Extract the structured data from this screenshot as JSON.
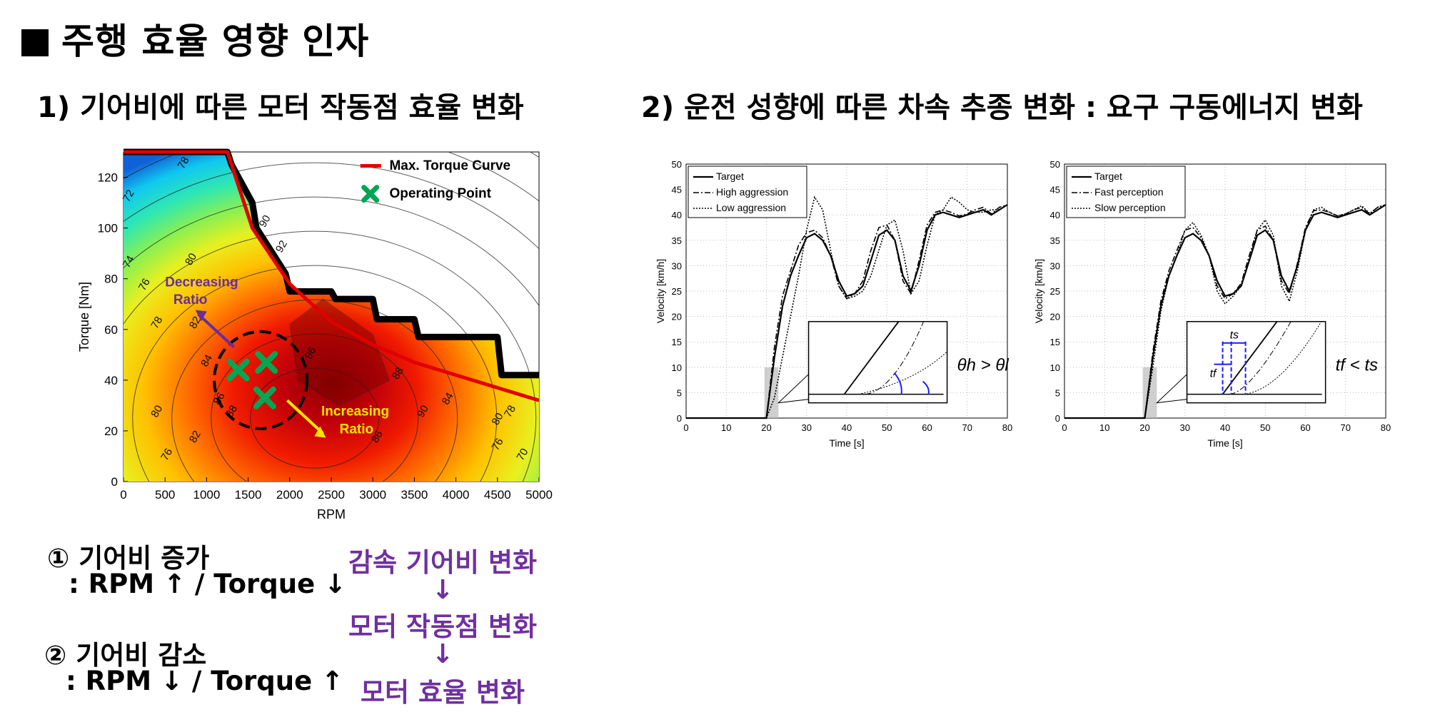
{
  "title": "주행 효율 영향 인자",
  "section1": {
    "title": "1) 기어비에 따른 모터 작동점 효율 변화"
  },
  "section2": {
    "title": "2) 운전 성향에 따른 차속 추종 변화 : 요구 구동에너지 변화"
  },
  "notes": {
    "increase_title": "① 기어비 증가",
    "increase_desc": ": RPM ↑ / Torque ↓",
    "decrease_title": "② 기어비 감소",
    "decrease_desc": ": RPM ↓ / Torque ↑"
  },
  "flow": {
    "step1": "감속 기어비 변화",
    "arrow1": "↓",
    "step2": "모터 작동점 변화",
    "arrow2": "↓",
    "step3": "모터 효율 변화"
  },
  "colors": {
    "purple": "#7030A0",
    "max_torque": "#E00000",
    "operating_point": "#00A651",
    "yellow_arrow": "#FFE600"
  },
  "chart_data": [
    {
      "type": "heatmap",
      "xlabel": "RPM",
      "ylabel": "Torque [Nm]",
      "xlim": [
        0,
        5000
      ],
      "ylim": [
        0,
        130
      ],
      "xticks": [
        "0",
        "500",
        "1000",
        "1500",
        "2000",
        "2500",
        "3000",
        "3500",
        "4000",
        "4500",
        "5000"
      ],
      "yticks": [
        "0",
        "20",
        "40",
        "60",
        "80",
        "100",
        "120"
      ],
      "legend": {
        "position": "top-right",
        "entries": [
          "Max. Torque Curve",
          "Operating Point"
        ]
      },
      "max_torque_curve": {
        "x": [
          0,
          1250,
          1550,
          2000,
          2500,
          3000,
          3500,
          4000,
          4500,
          5000
        ],
        "y": [
          130,
          130,
          100,
          78,
          63,
          54,
          47,
          42,
          37,
          32
        ]
      },
      "operating_points": [
        {
          "x": 1380,
          "y": 44
        },
        {
          "x": 1720,
          "y": 47
        },
        {
          "x": 1700,
          "y": 33
        }
      ],
      "efficiency_labels": [
        "72",
        "78",
        "74",
        "76",
        "78",
        "80",
        "82",
        "84",
        "86",
        "88",
        "90",
        "92",
        "96",
        "80",
        "76",
        "82",
        "86",
        "88",
        "90",
        "84",
        "80",
        "78",
        "76",
        "70"
      ],
      "annotations": {
        "decreasing": "Decreasing\nRatio",
        "increasing": "Increasing\nRatio"
      }
    },
    {
      "type": "line",
      "xlabel": "Time [s]",
      "ylabel": "Velocity [km/h]",
      "xlim": [
        0,
        80
      ],
      "ylim": [
        0,
        50
      ],
      "xticks": [
        "0",
        "10",
        "20",
        "30",
        "40",
        "50",
        "60",
        "70",
        "80"
      ],
      "yticks": [
        "0",
        "5",
        "10",
        "15",
        "20",
        "25",
        "30",
        "35",
        "40",
        "45",
        "50"
      ],
      "legend_position": "top-left",
      "inset_label": "θh > θl",
      "x": [
        0,
        19,
        20,
        22,
        24,
        26,
        28,
        30,
        32,
        34,
        36,
        38,
        40,
        42,
        44,
        46,
        48,
        50,
        52,
        54,
        56,
        58,
        60,
        62,
        64,
        66,
        68,
        70,
        72,
        74,
        76,
        78,
        80
      ],
      "series": [
        {
          "name": "Target",
          "style": "solid",
          "values": [
            0,
            0,
            0,
            12,
            22,
            28,
            32,
            35.5,
            36.3,
            35,
            32,
            27,
            24,
            24.5,
            26,
            31,
            36,
            37,
            35,
            28,
            25,
            30,
            37,
            40,
            40.5,
            40,
            39.5,
            40,
            40.5,
            41,
            40,
            41,
            42
          ]
        },
        {
          "name": "High aggression",
          "style": "dashdot",
          "values": [
            0,
            0,
            0,
            14,
            24,
            29,
            34,
            36.5,
            37,
            35.5,
            32,
            26,
            23.5,
            24.5,
            27,
            33,
            37.5,
            38,
            35,
            27,
            24.5,
            31,
            38,
            40.5,
            41,
            40.5,
            39.8,
            40.2,
            41,
            41.5,
            40.2,
            41.5,
            42
          ]
        },
        {
          "name": "Low aggression",
          "style": "dotted",
          "values": [
            0,
            0,
            0,
            4,
            12,
            20,
            28,
            37,
            43.5,
            41,
            33,
            26,
            23.5,
            24,
            25,
            28,
            33,
            38,
            39,
            33,
            24.5,
            27,
            34,
            40,
            41,
            43.5,
            42.5,
            41,
            40.5,
            40.5,
            41,
            41,
            42
          ]
        }
      ]
    },
    {
      "type": "line",
      "xlabel": "Time [s]",
      "ylabel": "Velocity [km/h]",
      "xlim": [
        0,
        80
      ],
      "ylim": [
        0,
        50
      ],
      "xticks": [
        "0",
        "10",
        "20",
        "30",
        "40",
        "50",
        "60",
        "70",
        "80"
      ],
      "yticks": [
        "0",
        "5",
        "10",
        "15",
        "20",
        "25",
        "30",
        "35",
        "40",
        "45",
        "50"
      ],
      "legend_position": "top-left",
      "inset_label": "tf < ts",
      "inset_ts": "ts",
      "inset_tf": "tf",
      "x": [
        0,
        19,
        20,
        22,
        24,
        26,
        28,
        30,
        32,
        34,
        36,
        38,
        40,
        42,
        44,
        46,
        48,
        50,
        52,
        54,
        56,
        58,
        60,
        62,
        64,
        66,
        68,
        70,
        72,
        74,
        76,
        78,
        80
      ],
      "series": [
        {
          "name": "Target",
          "style": "solid",
          "values": [
            0,
            0,
            0,
            12,
            22,
            28,
            32,
            35.5,
            36.3,
            35,
            32,
            27,
            24,
            24.5,
            26,
            31,
            36,
            37,
            35,
            28,
            25,
            30,
            37,
            40,
            40.5,
            40,
            39.5,
            40,
            40.5,
            41,
            40,
            41,
            42
          ]
        },
        {
          "name": "Fast perception",
          "style": "dashdot",
          "values": [
            0,
            0,
            0,
            13,
            23,
            29,
            33,
            37,
            37.5,
            35.5,
            32,
            26,
            23.5,
            24.5,
            26.5,
            32,
            37,
            37.8,
            35,
            27,
            24.5,
            30.5,
            37.5,
            40.8,
            41,
            40.5,
            39.8,
            40.2,
            41,
            41.5,
            40.2,
            41.5,
            42
          ]
        },
        {
          "name": "Slow perception",
          "style": "dotted",
          "values": [
            0,
            0,
            0,
            10,
            21,
            28,
            32,
            37,
            38.5,
            36,
            32,
            25,
            22.5,
            24,
            26,
            31,
            37,
            39,
            36,
            26,
            23,
            29,
            37,
            41,
            41.5,
            40.5,
            39.8,
            40.2,
            41,
            41.8,
            40.3,
            41.5,
            42
          ]
        }
      ]
    }
  ]
}
